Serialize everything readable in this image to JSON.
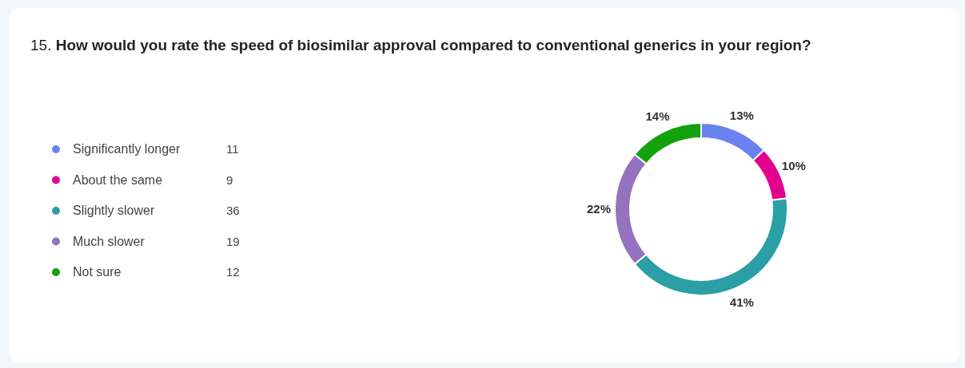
{
  "chart_data": {
    "type": "donut",
    "title": "15. How would you rate the speed of biosimilar approval compared to conventional generics in your region?",
    "categories": [
      "Significantly longer",
      "About the same",
      "Slightly slower",
      "Much slower",
      "Not sure"
    ],
    "values": [
      13,
      10,
      41,
      22,
      14
    ],
    "colors": [
      "#6a82f0",
      "#e3008c",
      "#2b9fa5",
      "#9572c0",
      "#13a10e"
    ],
    "value_labels": [
      "13%",
      "10%",
      "41%",
      "22%",
      "14%"
    ],
    "annotations": [
      "11",
      "9",
      "36",
      "19",
      "12"
    ],
    "legend": "left"
  }
}
